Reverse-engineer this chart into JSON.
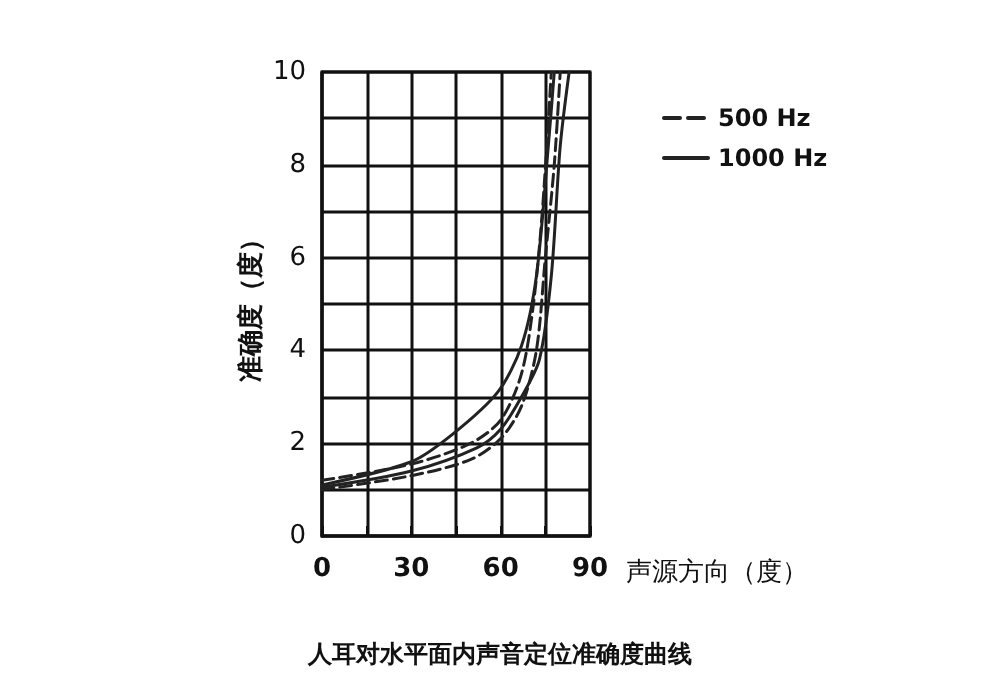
{
  "chart_data": {
    "type": "line",
    "title": "人耳对水平面内声音定位准确度曲线",
    "xlabel": "声源方向（度）",
    "ylabel": "准确度（度）",
    "xlim": [
      0,
      90
    ],
    "xticks": [
      0,
      {
        "value": 15,
        "label": null
      },
      30,
      {
        "value": 45,
        "label": null
      },
      60,
      {
        "value": 75,
        "label": null
      },
      90
    ],
    "ylim": [
      0,
      10
    ],
    "yticks": [
      0,
      {
        "value": 1,
        "label": null
      },
      2,
      {
        "value": 3,
        "label": null
      },
      4,
      {
        "value": 5,
        "label": null
      },
      6,
      {
        "value": 7,
        "label": null
      },
      8,
      {
        "value": 9,
        "label": null
      },
      10
    ],
    "grid": true,
    "legend": "top right",
    "marker": "none",
    "series": [
      {
        "name": "500 Hz",
        "color": "#222222",
        "line_style": "dashed",
        "x": [
          0,
          30,
          50,
          60,
          67,
          71,
          74,
          77
        ],
        "values": [
          1.2,
          1.55,
          2.0,
          2.5,
          3.5,
          5,
          7,
          10
        ]
      },
      {
        "color": "#222222",
        "line_style": "dashed",
        "x": [
          0,
          30,
          50,
          60,
          67,
          72,
          75,
          78,
          80
        ],
        "values": [
          1.0,
          1.3,
          1.65,
          2.1,
          2.8,
          4,
          6,
          8,
          10
        ]
      },
      {
        "name": "1000 Hz",
        "color": "#222222",
        "line_style": "solid",
        "x": [
          0,
          30,
          44,
          59,
          67,
          72,
          76,
          78
        ],
        "values": [
          1.1,
          1.6,
          2.2,
          3.1,
          4.1,
          5.6,
          8.4,
          10
        ]
      },
      {
        "color": "#222222",
        "line_style": "solid",
        "x": [
          0,
          30,
          52,
          60,
          67,
          73,
          77,
          80,
          83
        ],
        "values": [
          1.05,
          1.4,
          1.9,
          2.3,
          3.0,
          3.8,
          5.6,
          8.4,
          10
        ]
      }
    ]
  }
}
